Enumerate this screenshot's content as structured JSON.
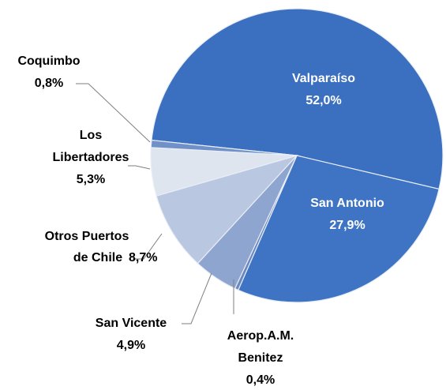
{
  "chart_data": {
    "type": "pie",
    "categories": [
      "Valparaíso",
      "San Antonio",
      "Aerop.A.M. Benitez",
      "San Vicente",
      "Otros Puertos de Chile",
      "Los Libertadores",
      "Coquimbo"
    ],
    "values": [
      52.0,
      27.9,
      0.4,
      4.9,
      8.7,
      5.3,
      0.8
    ],
    "value_labels": [
      "52,0%",
      "27,9%",
      "0,4%",
      "4,9%",
      "8,7%",
      "5,3%",
      "0,8%"
    ],
    "colors": [
      "#3b6fc0",
      "#3f74c5",
      "#6a88bf",
      "#8ea5cf",
      "#b9c7e1",
      "#dfe5ef",
      "#7090c8"
    ]
  }
}
